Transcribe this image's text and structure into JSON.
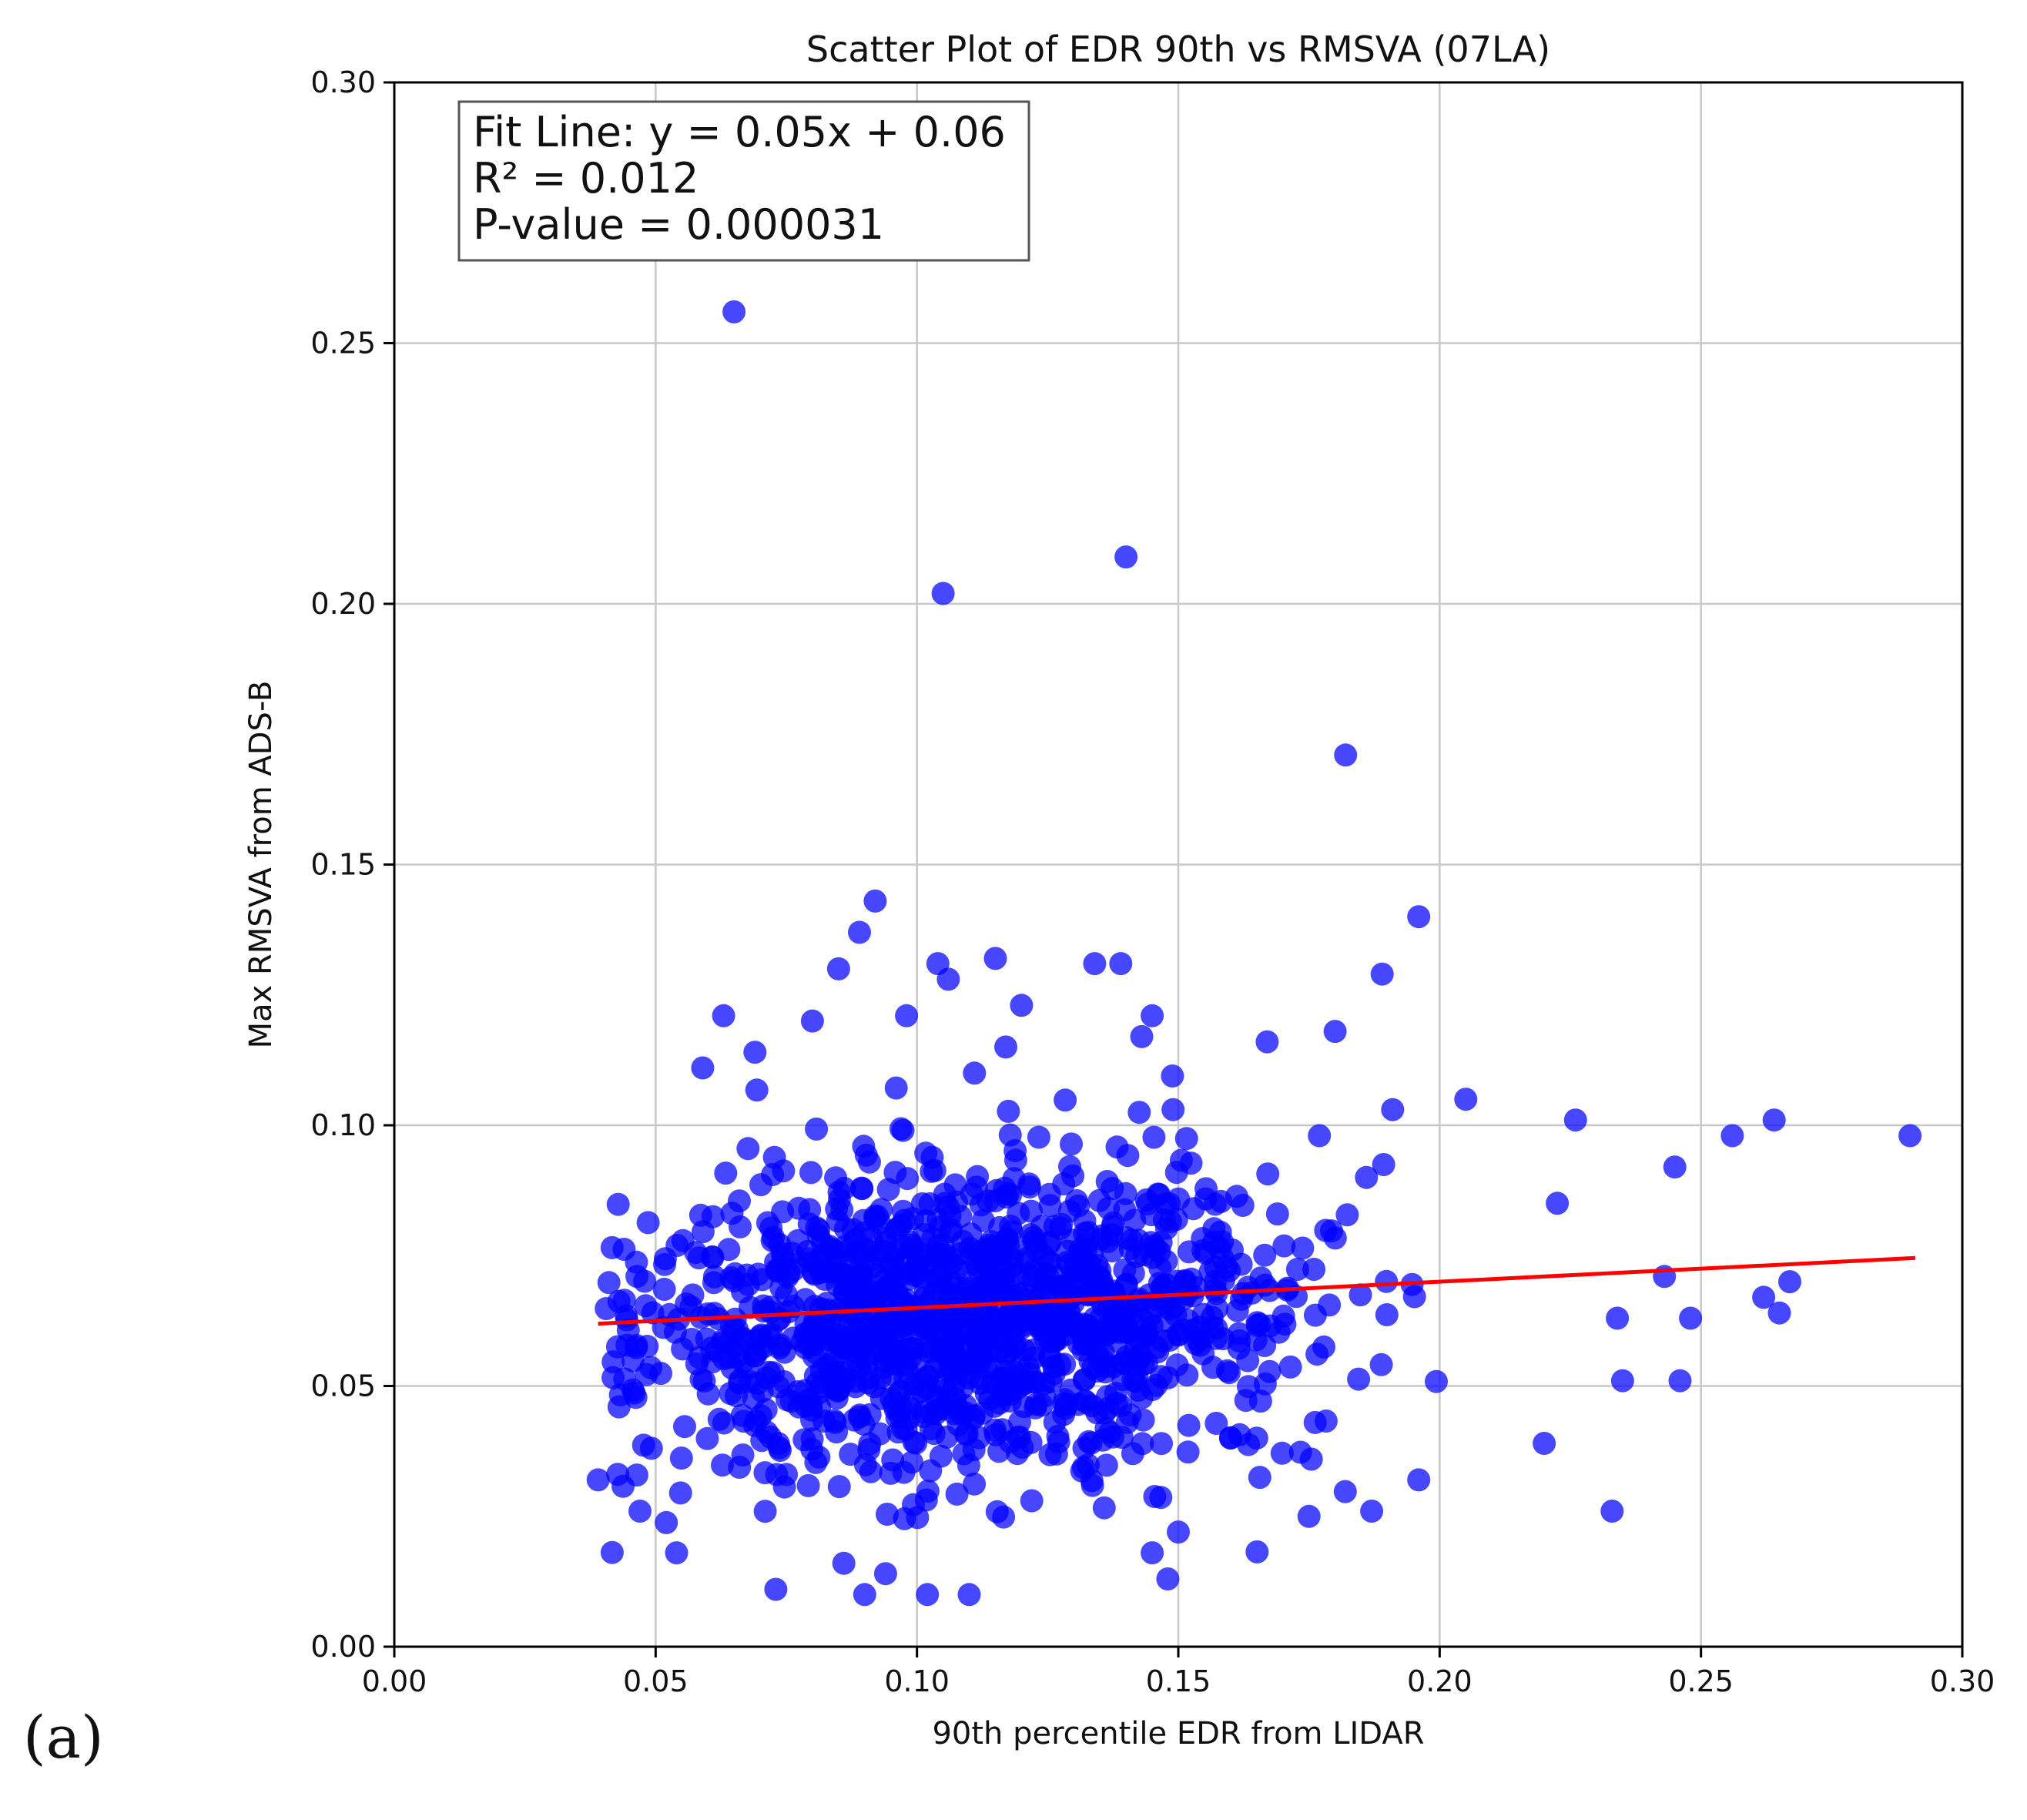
{
  "panel_label": "(a)",
  "colors": {
    "points": "#0000ff",
    "fit_line": "#ff0000",
    "grid": "#c8c8c8",
    "axes": "#000000"
  },
  "chart_data": {
    "type": "scatter",
    "title": "Scatter Plot of EDR 90th vs RMSVA (07LA)",
    "xlabel": "90th percentile EDR from LIDAR",
    "ylabel": "Max RMSVA from ADS-B",
    "xlim": [
      0.0,
      0.3
    ],
    "ylim": [
      0.0,
      0.3
    ],
    "xticks": [
      "0.00",
      "0.05",
      "0.10",
      "0.15",
      "0.20",
      "0.25",
      "0.30"
    ],
    "yticks": [
      "0.00",
      "0.05",
      "0.10",
      "0.15",
      "0.20",
      "0.25",
      "0.30"
    ],
    "grid": true,
    "annotation": {
      "lines": [
        "Fit Line: y = 0.05x + 0.06",
        "R² = 0.012",
        "P-value = 0.000031"
      ],
      "placement": "top-left"
    },
    "fit_line": {
      "slope": 0.05,
      "intercept": 0.06,
      "x_range": [
        0.039,
        0.291
      ]
    },
    "outliers": [
      [
        0.065,
        0.256
      ],
      [
        0.14,
        0.209
      ],
      [
        0.105,
        0.202
      ],
      [
        0.182,
        0.171
      ],
      [
        0.092,
        0.143
      ],
      [
        0.196,
        0.14
      ],
      [
        0.089,
        0.137
      ],
      [
        0.104,
        0.131
      ],
      [
        0.115,
        0.132
      ],
      [
        0.134,
        0.131
      ],
      [
        0.139,
        0.131
      ],
      [
        0.106,
        0.128
      ],
      [
        0.189,
        0.129
      ],
      [
        0.085,
        0.13
      ],
      [
        0.063,
        0.121
      ],
      [
        0.12,
        0.123
      ],
      [
        0.098,
        0.121
      ],
      [
        0.145,
        0.121
      ],
      [
        0.08,
        0.12
      ],
      [
        0.18,
        0.118
      ],
      [
        0.167,
        0.116
      ],
      [
        0.143,
        0.117
      ],
      [
        0.117,
        0.115
      ],
      [
        0.069,
        0.114
      ],
      [
        0.059,
        0.111
      ],
      [
        0.111,
        0.11
      ],
      [
        0.205,
        0.105
      ],
      [
        0.226,
        0.101
      ],
      [
        0.264,
        0.101
      ],
      [
        0.256,
        0.098
      ],
      [
        0.29,
        0.098
      ],
      [
        0.191,
        0.103
      ],
      [
        0.149,
        0.103
      ],
      [
        0.245,
        0.092
      ],
      [
        0.262,
        0.067
      ],
      [
        0.267,
        0.07
      ],
      [
        0.265,
        0.064
      ],
      [
        0.248,
        0.063
      ],
      [
        0.243,
        0.071
      ],
      [
        0.234,
        0.063
      ],
      [
        0.233,
        0.026
      ],
      [
        0.235,
        0.051
      ],
      [
        0.246,
        0.051
      ],
      [
        0.039,
        0.032
      ],
      [
        0.043,
        0.046
      ],
      [
        0.047,
        0.026
      ],
      [
        0.054,
        0.018
      ],
      [
        0.073,
        0.011
      ],
      [
        0.086,
        0.016
      ],
      [
        0.09,
        0.01
      ],
      [
        0.094,
        0.014
      ],
      [
        0.102,
        0.01
      ],
      [
        0.11,
        0.01
      ],
      [
        0.148,
        0.013
      ],
      [
        0.15,
        0.022
      ],
      [
        0.145,
        0.018
      ],
      [
        0.175,
        0.025
      ],
      [
        0.187,
        0.026
      ],
      [
        0.196,
        0.032
      ],
      [
        0.22,
        0.039
      ],
      [
        0.177,
        0.098
      ],
      [
        0.186,
        0.09
      ],
      [
        0.16,
        0.04
      ],
      [
        0.165,
        0.04
      ]
    ],
    "cluster": {
      "description": "dense main cloud of points",
      "x_center": 0.11,
      "x_spread": 0.032,
      "y_center": 0.062,
      "y_spread": 0.014,
      "count": 1300
    }
  }
}
